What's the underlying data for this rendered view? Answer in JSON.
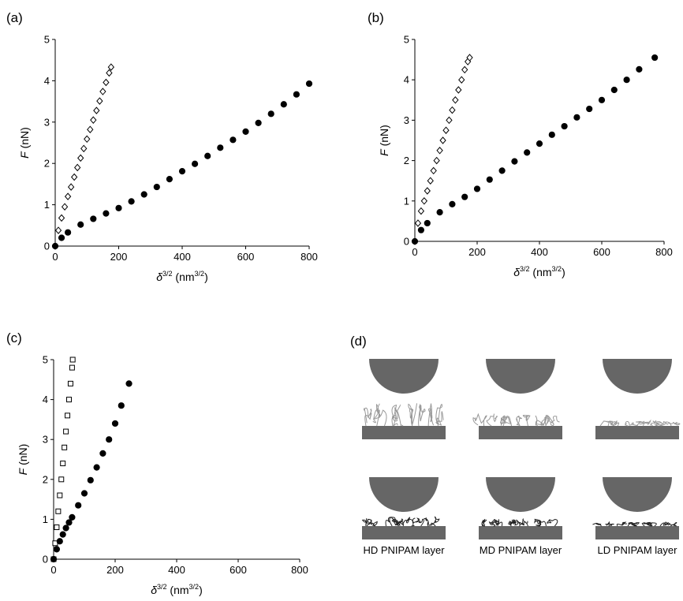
{
  "chart_data": [
    {
      "type": "scatter",
      "panel_label": "(a)",
      "x_label": [
        "δ",
        "3/2",
        " (nm",
        "3/2",
        ")"
      ],
      "y_label": [
        "F",
        " (nN)"
      ],
      "xlim": [
        0,
        800
      ],
      "ylim": [
        0,
        5
      ],
      "xticks": [
        0,
        200,
        400,
        600,
        800
      ],
      "yticks": [
        0,
        1,
        2,
        3,
        4,
        5
      ],
      "series": [
        {
          "color": "#000000",
          "marker": "diamond",
          "filled": false,
          "x": [
            0,
            10,
            20,
            30,
            40,
            50,
            60,
            70,
            80,
            90,
            100,
            110,
            120,
            130,
            140,
            150,
            160,
            170,
            176
          ],
          "values": [
            0,
            0.38,
            0.68,
            0.95,
            1.2,
            1.43,
            1.67,
            1.9,
            2.13,
            2.36,
            2.59,
            2.82,
            3.05,
            3.28,
            3.51,
            3.74,
            3.96,
            4.19,
            4.33
          ]
        },
        {
          "color": "#000000",
          "marker": "circle",
          "filled": true,
          "x": [
            0,
            20,
            40,
            80,
            120,
            160,
            200,
            240,
            280,
            320,
            360,
            400,
            440,
            480,
            520,
            560,
            600,
            640,
            680,
            720,
            760,
            800
          ],
          "values": [
            0,
            0.2,
            0.33,
            0.52,
            0.66,
            0.79,
            0.92,
            1.08,
            1.25,
            1.43,
            1.62,
            1.81,
            1.99,
            2.18,
            2.38,
            2.57,
            2.77,
            2.98,
            3.2,
            3.43,
            3.67,
            3.93
          ]
        }
      ]
    },
    {
      "type": "scatter",
      "panel_label": "(b)",
      "x_label": [
        "δ",
        "3/2",
        " (nm",
        "3/2",
        ")"
      ],
      "y_label": [
        "F",
        " (nN)"
      ],
      "xlim": [
        0,
        800
      ],
      "ylim": [
        0,
        5
      ],
      "xticks": [
        0,
        200,
        400,
        600,
        800
      ],
      "yticks": [
        0,
        1,
        2,
        3,
        4,
        5
      ],
      "series": [
        {
          "color": "#000000",
          "marker": "diamond",
          "filled": false,
          "x": [
            0,
            10,
            20,
            30,
            40,
            50,
            60,
            70,
            80,
            90,
            100,
            110,
            120,
            130,
            140,
            150,
            160,
            170,
            176
          ],
          "values": [
            0,
            0.45,
            0.75,
            1.0,
            1.25,
            1.5,
            1.75,
            2.0,
            2.25,
            2.5,
            2.75,
            3.0,
            3.25,
            3.5,
            3.75,
            4.0,
            4.25,
            4.45,
            4.55
          ]
        },
        {
          "color": "#000000",
          "marker": "circle",
          "filled": true,
          "x": [
            0,
            20,
            40,
            80,
            120,
            160,
            200,
            240,
            280,
            320,
            360,
            400,
            440,
            480,
            520,
            560,
            600,
            640,
            680,
            720,
            770
          ],
          "values": [
            0,
            0.28,
            0.45,
            0.72,
            0.92,
            1.1,
            1.3,
            1.53,
            1.75,
            1.98,
            2.2,
            2.42,
            2.64,
            2.85,
            3.07,
            3.28,
            3.5,
            3.75,
            4.0,
            4.26,
            4.55
          ]
        }
      ]
    },
    {
      "type": "scatter",
      "panel_label": "(c)",
      "x_label": [
        "δ",
        "3/2",
        " (nm",
        "3/2",
        ")"
      ],
      "y_label": [
        "F",
        " (nN)"
      ],
      "xlim": [
        0,
        800
      ],
      "ylim": [
        0,
        5
      ],
      "xticks": [
        0,
        200,
        400,
        600,
        800
      ],
      "yticks": [
        0,
        1,
        2,
        3,
        4,
        5
      ],
      "series": [
        {
          "color": "#000000",
          "marker": "square",
          "filled": false,
          "x": [
            0,
            5,
            10,
            15,
            20,
            25,
            30,
            35,
            40,
            45,
            50,
            55,
            60,
            62
          ],
          "values": [
            0,
            0.4,
            0.8,
            1.2,
            1.6,
            2.0,
            2.4,
            2.8,
            3.2,
            3.6,
            4.0,
            4.4,
            4.8,
            5.0
          ]
        },
        {
          "color": "#000000",
          "marker": "circle",
          "filled": true,
          "x": [
            0,
            10,
            20,
            30,
            40,
            50,
            60,
            80,
            100,
            120,
            140,
            160,
            180,
            200,
            220,
            245
          ],
          "values": [
            0,
            0.25,
            0.45,
            0.62,
            0.78,
            0.92,
            1.05,
            1.35,
            1.65,
            1.98,
            2.3,
            2.65,
            3.0,
            3.4,
            3.85,
            4.4
          ]
        }
      ]
    }
  ],
  "diagram": {
    "panel_label": "(d)",
    "labels": [
      "HD PNIPAM layer",
      "MD PNIPAM layer",
      "LD PNIPAM layer"
    ]
  }
}
